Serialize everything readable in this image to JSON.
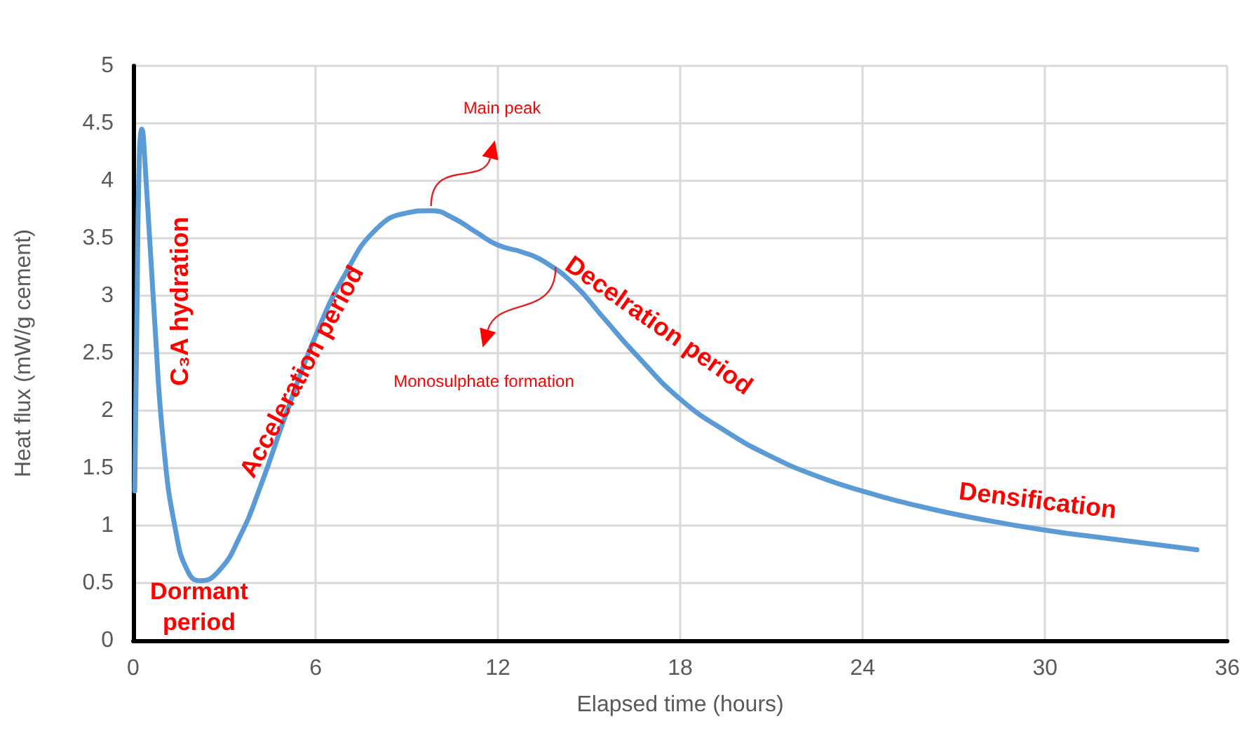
{
  "chart_data": {
    "type": "line",
    "xlabel": "Elapsed time (hours)",
    "ylabel": "Heat flux (mW/g cement)",
    "xlim": [
      0,
      36
    ],
    "xticks": [
      0,
      6,
      12,
      18,
      24,
      30,
      36
    ],
    "ylim": [
      0,
      5
    ],
    "yticks": [
      0,
      0.5,
      1,
      1.5,
      2,
      2.5,
      3,
      3.5,
      4,
      4.5,
      5
    ],
    "grid": true,
    "marker": "none",
    "series": [
      {
        "color": "#5b9bd5",
        "x": [
          0.05,
          0.12,
          0.2,
          0.28,
          0.4,
          0.7,
          1.0,
          1.4,
          1.8,
          2.2,
          2.8,
          3.5,
          4.2,
          5,
          6,
          7,
          8,
          9,
          9.8,
          10.5,
          11.3,
          12,
          12.8,
          13.5,
          14.5,
          15.5,
          16.5,
          18,
          19.5,
          21,
          22.5,
          24,
          26,
          28,
          30,
          32,
          35
        ],
        "values": [
          1.3,
          2.8,
          4.2,
          4.45,
          4.1,
          2.8,
          1.7,
          0.95,
          0.6,
          0.52,
          0.6,
          0.9,
          1.35,
          1.95,
          2.65,
          3.2,
          3.58,
          3.72,
          3.74,
          3.68,
          3.55,
          3.44,
          3.38,
          3.3,
          3.1,
          2.8,
          2.5,
          2.1,
          1.82,
          1.6,
          1.43,
          1.3,
          1.16,
          1.05,
          0.96,
          0.89,
          0.79
        ]
      }
    ],
    "annotations": [
      "C₃A hydration",
      "Acceleration period",
      "Dormant\nperiod",
      "Main peak",
      "Monosulphate formation",
      "Decelration period",
      "Densification"
    ]
  }
}
